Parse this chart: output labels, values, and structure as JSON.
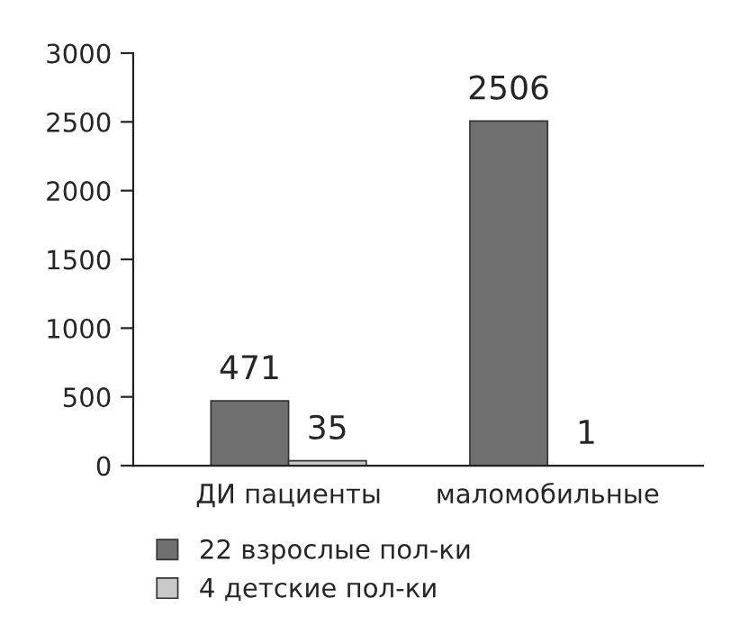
{
  "chart_data": {
    "type": "bar",
    "categories": [
      "ДИ пациенты",
      "маломобильные"
    ],
    "series": [
      {
        "name": "22 взрослые пол-ки",
        "color": "#707070",
        "values": [
          471,
          2506
        ]
      },
      {
        "name": "4 детские пол-ки",
        "color": "#c8c8c8",
        "values": [
          35,
          1
        ]
      }
    ],
    "ylim": [
      0,
      3000
    ],
    "yticks": [
      0,
      500,
      1000,
      1500,
      2000,
      2500,
      3000
    ],
    "data_labels": true,
    "legend": "bottom",
    "grid": false
  }
}
